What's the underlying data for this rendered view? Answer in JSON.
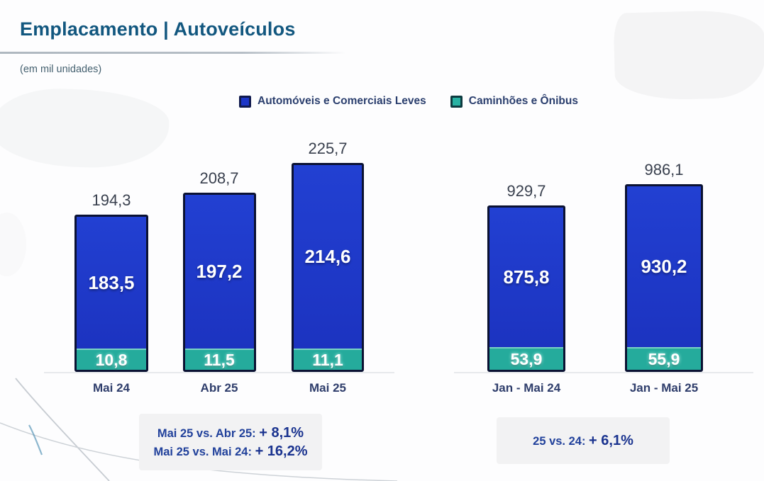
{
  "page": {
    "title": "Emplacamento | Autoveículos",
    "subtitle": "(em mil unidades)"
  },
  "colors": {
    "title": "#12577f",
    "autos_blue": "#1d36c6",
    "trucks_teal": "#25ab9c",
    "navy_text": "#2e3d6b",
    "annotation_navy": "#1a338f",
    "note_box_bg": "#f2f2f3"
  },
  "legend": [
    {
      "label": "Automóveis e Comerciais Leves",
      "color": "#1c36c8",
      "border": "#101a4e"
    },
    {
      "label": "Caminhões e Ônibus",
      "color": "#28b2a3",
      "border": "#0e3b40"
    }
  ],
  "chart_data": {
    "type": "bar",
    "stacked": true,
    "title": "Emplacamento | Autoveículos",
    "unit_label": "(em mil unidades)",
    "ylabel": "mil unidades",
    "legend_position": "top",
    "grid": false,
    "series_names": [
      "Automóveis e Comerciais Leves",
      "Caminhões e Ônibus"
    ],
    "groups": [
      {
        "id": "monthly",
        "categories": [
          "Mai 24",
          "Abr 25",
          "Mai 25"
        ],
        "totals": [
          194.3,
          208.7,
          225.7
        ],
        "series": [
          {
            "name": "Automóveis e Comerciais Leves",
            "values": [
              183.5,
              197.2,
              214.6
            ]
          },
          {
            "name": "Caminhões e Ônibus",
            "values": [
              10.8,
              11.5,
              11.1
            ]
          }
        ],
        "display": {
          "totals": [
            "194,3",
            "208,7",
            "225,7"
          ],
          "autos": [
            "183,5",
            "197,2",
            "214,6"
          ],
          "trucks": [
            "10,8",
            "11,5",
            "11,1"
          ]
        }
      },
      {
        "id": "cumulative",
        "categories": [
          "Jan - Mai 24",
          "Jan - Mai 25"
        ],
        "totals": [
          929.7,
          986.1
        ],
        "series": [
          {
            "name": "Automóveis e Comerciais Leves",
            "values": [
              875.8,
              930.2
            ]
          },
          {
            "name": "Caminhões e Ônibus",
            "values": [
              53.9,
              55.9
            ]
          }
        ],
        "display": {
          "totals": [
            "929,7",
            "986,1"
          ],
          "autos": [
            "875,8",
            "930,2"
          ],
          "trucks": [
            "53,9",
            "55,9"
          ]
        }
      }
    ]
  },
  "annotation_boxes": [
    {
      "lines": [
        {
          "prefix": "Mai 25 vs. Abr 25: ",
          "value": "+ 8,1%"
        },
        {
          "prefix": "Mai 25 vs. Mai 24: ",
          "value": "+ 16,2%"
        }
      ]
    },
    {
      "lines": [
        {
          "prefix": "25 vs. 24: ",
          "value": "+ 6,1%"
        }
      ]
    }
  ]
}
